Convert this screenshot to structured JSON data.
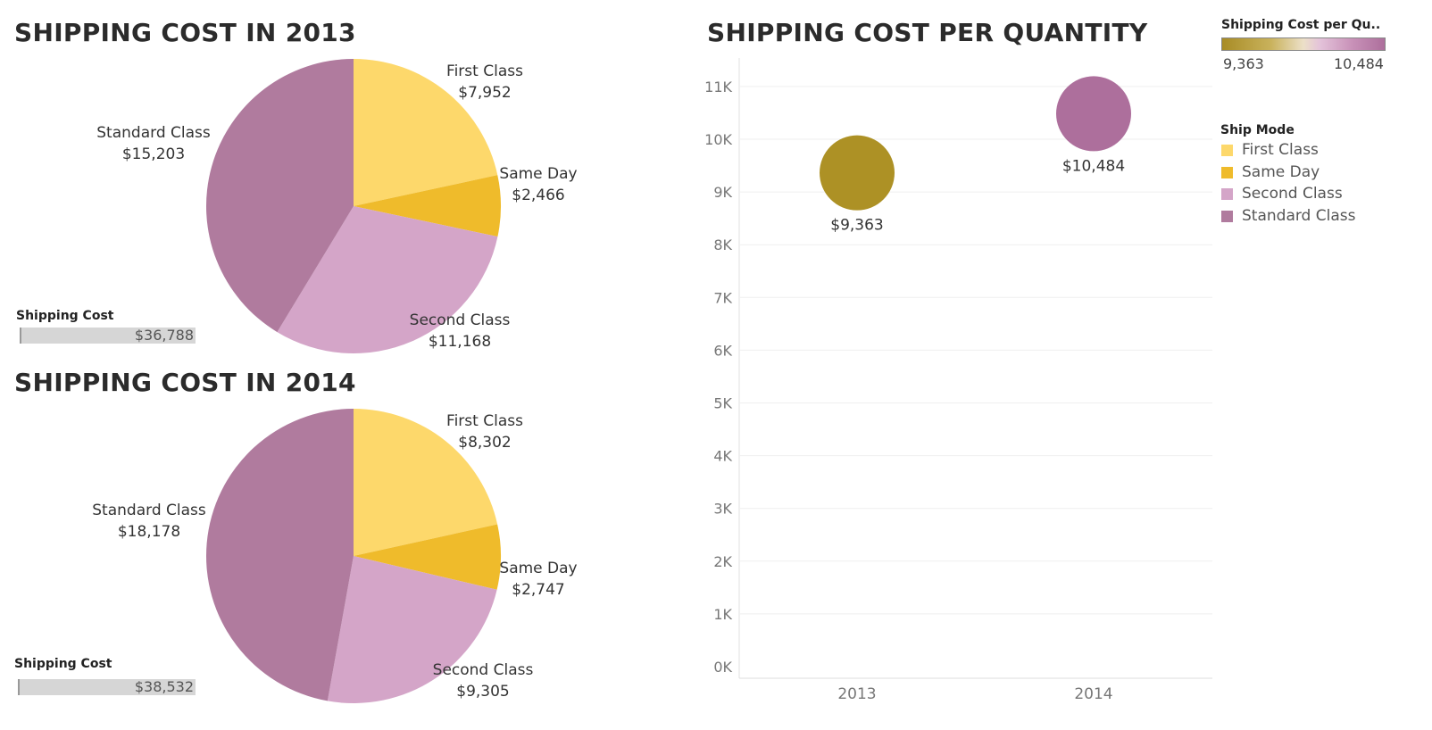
{
  "pie_2013": {
    "title": "SHIPPING COST IN 2013",
    "total_label": "Shipping Cost",
    "total_value": "$36,788",
    "labels": {
      "first_class_name": "First Class",
      "first_class_value": "$7,952",
      "same_day_name": "Same Day",
      "same_day_value": "$2,466",
      "second_class_name": "Second Class",
      "second_class_value": "$11,168",
      "standard_class_name": "Standard Class",
      "standard_class_value": "$15,203"
    }
  },
  "pie_2014": {
    "title": "SHIPPING COST IN 2014",
    "total_label": "Shipping Cost",
    "total_value": "$38,532",
    "labels": {
      "first_class_name": "First Class",
      "first_class_value": "$8,302",
      "same_day_name": "Same Day",
      "same_day_value": "$2,747",
      "second_class_name": "Second Class",
      "second_class_value": "$9,305",
      "standard_class_name": "Standard Class",
      "standard_class_value": "$18,178"
    }
  },
  "bubble": {
    "title": "SHIPPING COST PER QUANTITY",
    "value_labels": [
      "$9,363",
      "$10,484"
    ]
  },
  "legend": {
    "gradient_title": "Shipping Cost per Qu..",
    "gradient_min": "9,363",
    "gradient_max": "10,484",
    "ship_mode_title": "Ship Mode",
    "items": [
      "First Class",
      "Same Day",
      "Second Class",
      "Standard Class"
    ]
  },
  "colors": {
    "First Class": "#fdd86b",
    "Same Day": "#efbb2b",
    "Second Class": "#d4a5c8",
    "Standard Class": "#b07b9e",
    "bubble_low": "#ad9125",
    "bubble_high": "#ad6f9c"
  },
  "chart_data": [
    {
      "type": "pie",
      "title": "SHIPPING COST IN 2013",
      "categories": [
        "First Class",
        "Same Day",
        "Second Class",
        "Standard Class"
      ],
      "values": [
        7952,
        2466,
        11168,
        15203
      ]
    },
    {
      "type": "pie",
      "title": "SHIPPING COST IN 2014",
      "categories": [
        "First Class",
        "Same Day",
        "Second Class",
        "Standard Class"
      ],
      "values": [
        8302,
        2747,
        9305,
        18178
      ]
    },
    {
      "type": "scatter",
      "title": "SHIPPING COST PER QUANTITY",
      "x": [
        "2013",
        "2014"
      ],
      "y": [
        9363,
        10484
      ],
      "ylim": [
        0,
        11500
      ],
      "yticks": [
        "0K",
        "1K",
        "2K",
        "3K",
        "4K",
        "5K",
        "6K",
        "7K",
        "8K",
        "9K",
        "10K",
        "11K"
      ],
      "grid": true
    }
  ]
}
